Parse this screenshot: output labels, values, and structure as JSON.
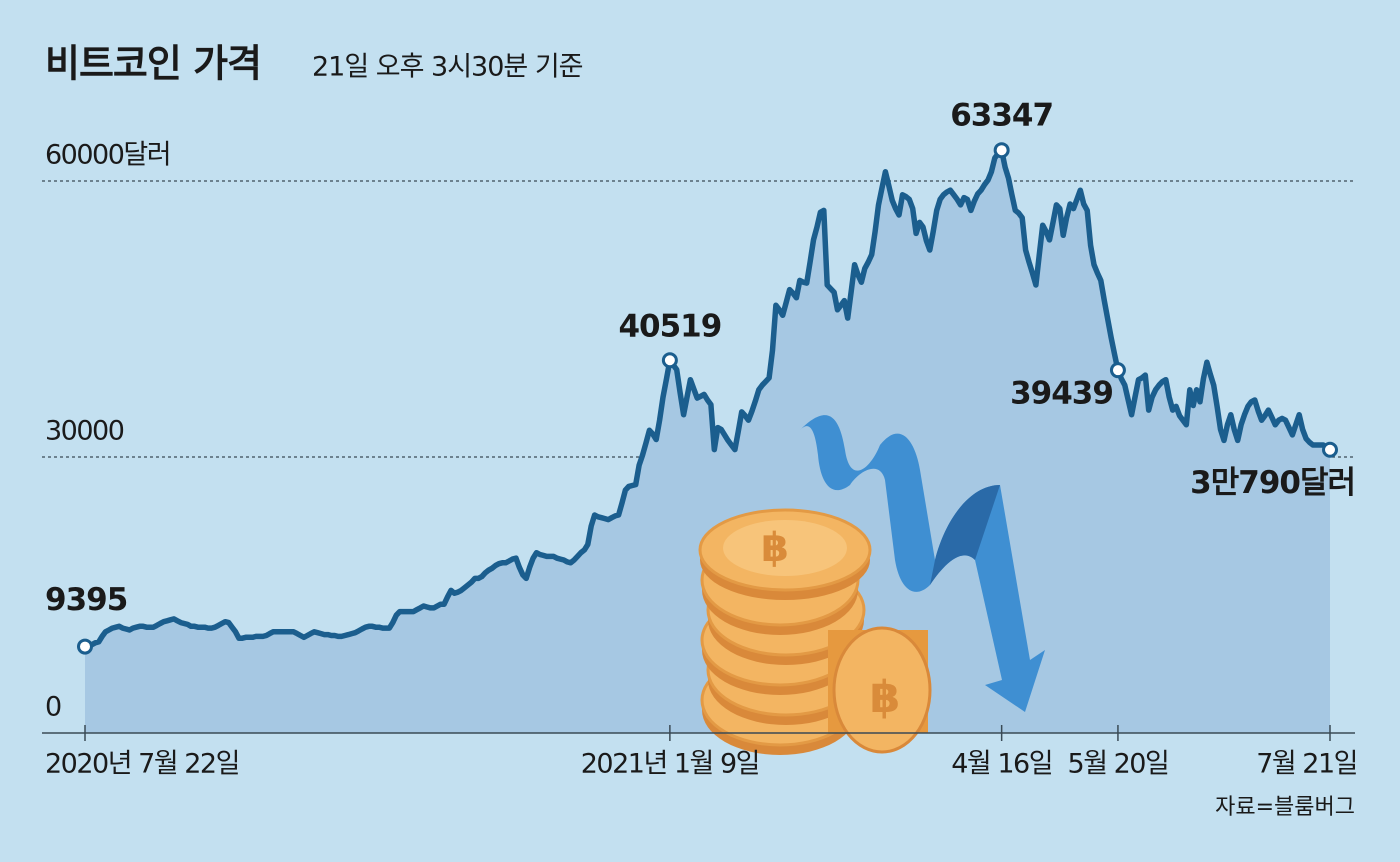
{
  "chart_data": {
    "type": "line",
    "title": "비트코인 가격",
    "subtitle": "21일 오후 3시30분 기준",
    "source": "자료=블룸버그",
    "color": "#1b5e8e",
    "area_color": "#a6c8e3",
    "grid": true,
    "ylim": [
      0,
      65000
    ],
    "yticks": [
      0,
      30000,
      {
        "value": 60000,
        "label": "60000달러"
      }
    ],
    "categories": [
      "2020년 7월 22일",
      null,
      null,
      null,
      null,
      null,
      null,
      null,
      null,
      null,
      null,
      null,
      null,
      null,
      null,
      null,
      null,
      null,
      null,
      null,
      null,
      null,
      null,
      null,
      null,
      null,
      null,
      null,
      null,
      null,
      null,
      null,
      null,
      null,
      null,
      null,
      null,
      null,
      null,
      null,
      null,
      null,
      null,
      null,
      null,
      null,
      null,
      null,
      null,
      null,
      null,
      null,
      null,
      null,
      null,
      null,
      null,
      null,
      null,
      null,
      null,
      null,
      null,
      null,
      null,
      null,
      null,
      null,
      null,
      null,
      null,
      null,
      null,
      null,
      null,
      null,
      null,
      null,
      null,
      null,
      null,
      null,
      null,
      null,
      null,
      null,
      null,
      null,
      null,
      null,
      null,
      null,
      null,
      null,
      null,
      null,
      null,
      null,
      null,
      null,
      null,
      null,
      null,
      null,
      null,
      null,
      null,
      null,
      null,
      null,
      null,
      null,
      null,
      null,
      null,
      null,
      null,
      null,
      null,
      null,
      null,
      null,
      null,
      null,
      null,
      null,
      null,
      null,
      null,
      null,
      null,
      null,
      null,
      null,
      null,
      null,
      null,
      null,
      null,
      null,
      null,
      null,
      null,
      null,
      null,
      null,
      null,
      null,
      null,
      null,
      null,
      null,
      null,
      null,
      null,
      null,
      null,
      null,
      null,
      null,
      null,
      null,
      null,
      null,
      null,
      null,
      null,
      null,
      null,
      null,
      null,
      "2021년 1월 9일",
      null,
      null,
      null,
      null,
      null,
      null,
      null,
      null,
      null,
      null,
      null,
      null,
      null,
      null,
      null,
      null,
      null,
      null,
      null,
      null,
      null,
      null,
      null,
      null,
      null,
      null,
      null,
      null,
      null,
      null,
      null,
      null,
      null,
      null,
      null,
      null,
      null,
      null,
      null,
      null,
      null,
      null,
      null,
      null,
      null,
      null,
      null,
      null,
      null,
      null,
      null,
      null,
      null,
      null,
      null,
      null,
      null,
      null,
      null,
      null,
      null,
      null,
      null,
      null,
      null,
      null,
      null,
      null,
      null,
      null,
      null,
      null,
      null,
      null,
      null,
      null,
      null,
      null,
      null,
      null,
      null,
      null,
      null,
      null,
      null,
      null,
      null,
      null,
      null,
      null,
      null,
      null,
      null,
      null,
      null,
      null,
      "4월 16일",
      null,
      null,
      null,
      null,
      null,
      null,
      null,
      null,
      null,
      null,
      null,
      null,
      null,
      null,
      null,
      null,
      null,
      null,
      null,
      null,
      null,
      null,
      null,
      null,
      null,
      null,
      null,
      null,
      null,
      null,
      null,
      null,
      null,
      "5월 20일",
      null,
      null,
      null,
      null,
      null,
      null,
      null,
      null,
      null,
      null,
      null,
      null,
      null,
      null,
      null,
      null,
      null,
      null,
      null,
      null,
      null,
      null,
      null,
      null,
      null,
      null,
      null,
      null,
      null,
      null,
      null,
      null,
      null,
      null,
      null,
      null,
      null,
      null,
      null,
      null,
      null,
      null,
      null,
      null,
      null,
      null,
      null,
      null,
      null,
      null,
      null,
      null,
      null,
      null,
      null,
      null,
      null,
      null,
      null,
      null,
      null,
      "7월 21일"
    ],
    "values": [
      9395,
      9500,
      9600,
      9800,
      9900,
      10500,
      11000,
      11200,
      11400,
      11500,
      11600,
      11400,
      11300,
      11200,
      11400,
      11500,
      11600,
      11600,
      11500,
      11500,
      11500,
      11700,
      11900,
      12100,
      12200,
      12300,
      12400,
      12200,
      12000,
      11900,
      11800,
      11600,
      11600,
      11500,
      11500,
      11500,
      11400,
      11400,
      11500,
      11700,
      11900,
      12100,
      12000,
      11500,
      11000,
      10300,
      10300,
      10400,
      10400,
      10400,
      10500,
      10500,
      10500,
      10600,
      10800,
      11000,
      11000,
      11000,
      11000,
      11000,
      11000,
      11000,
      10800,
      10600,
      10400,
      10600,
      10800,
      11000,
      10900,
      10800,
      10700,
      10700,
      10600,
      10600,
      10500,
      10500,
      10600,
      10700,
      10800,
      10900,
      11100,
      11300,
      11500,
      11600,
      11600,
      11500,
      11500,
      11400,
      11400,
      11400,
      12000,
      12800,
      13200,
      13200,
      13200,
      13200,
      13200,
      13400,
      13600,
      13800,
      13700,
      13600,
      13600,
      13800,
      14000,
      14000,
      14800,
      15500,
      15200,
      15300,
      15500,
      15800,
      16100,
      16400,
      16800,
      16800,
      17000,
      17400,
      17700,
      17900,
      18200,
      18400,
      18500,
      18500,
      18700,
      18900,
      19000,
      18000,
      17200,
      16800,
      18000,
      19000,
      19600,
      19400,
      19300,
      19200,
      19200,
      19200,
      19000,
      18900,
      18800,
      18600,
      18500,
      18800,
      19200,
      19600,
      19900,
      20500,
      22500,
      23700,
      23500,
      23400,
      23300,
      23200,
      23400,
      23600,
      23700,
      25000,
      26400,
      26800,
      26900,
      27000,
      29100,
      30200,
      31500,
      32900,
      32500,
      31900,
      34000,
      36500,
      38500,
      40519,
      40000,
      39500,
      37000,
      34600,
      36500,
      38400,
      37400,
      36400,
      36600,
      36800,
      36200,
      35700,
      30800,
      33200,
      33000,
      32400,
      31800,
      31300,
      30800,
      32800,
      34900,
      34500,
      34000,
      35000,
      36100,
      37300,
      37800,
      38200,
      38600,
      41600,
      46500,
      46000,
      45400,
      46800,
      48200,
      47800,
      47300,
      49200,
      49000,
      48900,
      51200,
      53600,
      55000,
      56600,
      56800,
      48700,
      48300,
      47900,
      46000,
      46500,
      47000,
      45100,
      48000,
      50900,
      49800,
      49000,
      50500,
      51200,
      52000,
      54500,
      57400,
      59200,
      61000,
      59500,
      57900,
      57000,
      56300,
      58500,
      58300,
      58000,
      57000,
      54300,
      55500,
      55000,
      53500,
      52500,
      54500,
      56800,
      58000,
      58500,
      58800,
      59000,
      58500,
      58000,
      57400,
      58200,
      58000,
      56800,
      57800,
      58600,
      59000,
      59600,
      60100,
      61000,
      62500,
      63000,
      63347,
      61500,
      60300,
      58500,
      56800,
      56500,
      56000,
      52500,
      51200,
      50000,
      48700,
      52000,
      55200,
      54500,
      53600,
      55500,
      57400,
      57000,
      54100,
      56000,
      57500,
      57000,
      58000,
      59000,
      57500,
      56800,
      53000,
      50900,
      50000,
      49200,
      47000,
      45000,
      43000,
      41200,
      39439,
      38500,
      37800,
      36200,
      34600,
      36500,
      38400,
      38600,
      38900,
      35100,
      36500,
      37300,
      37800,
      38200,
      38400,
      36500,
      35100,
      35500,
      34500,
      34000,
      33500,
      37300,
      35600,
      37300,
      36000,
      38500,
      40300,
      39000,
      37800,
      35500,
      33000,
      31800,
      33500,
      34600,
      33000,
      31800,
      33500,
      34600,
      35500,
      36000,
      36200,
      35000,
      34000,
      34500,
      35100,
      34300,
      33500,
      34000,
      34200,
      34000,
      33200,
      32400,
      33500,
      34600,
      33000,
      32000,
      31600,
      31300,
      31300,
      31300,
      31300,
      31000,
      30790
    ],
    "value_labels": [
      "9395",
      null,
      null,
      null,
      null,
      null,
      null,
      null,
      null,
      null,
      null,
      null,
      null,
      null,
      null,
      null,
      null,
      null,
      null,
      null,
      null,
      null,
      null,
      null,
      null,
      null,
      null,
      null,
      null,
      null,
      null,
      null,
      null,
      null,
      null,
      null,
      null,
      null,
      null,
      null,
      null,
      null,
      null,
      null,
      null,
      null,
      null,
      null,
      null,
      null,
      null,
      null,
      null,
      null,
      null,
      null,
      null,
      null,
      null,
      null,
      null,
      null,
      null,
      null,
      null,
      null,
      null,
      null,
      null,
      null,
      null,
      null,
      null,
      null,
      null,
      null,
      null,
      null,
      null,
      null,
      null,
      null,
      null,
      null,
      null,
      null,
      null,
      null,
      null,
      null,
      null,
      null,
      null,
      null,
      null,
      null,
      null,
      null,
      null,
      null,
      null,
      null,
      null,
      null,
      null,
      null,
      null,
      null,
      null,
      null,
      null,
      null,
      null,
      null,
      null,
      null,
      null,
      null,
      null,
      null,
      null,
      null,
      null,
      null,
      null,
      null,
      null,
      null,
      null,
      null,
      null,
      null,
      null,
      null,
      null,
      null,
      null,
      null,
      null,
      null,
      null,
      null,
      null,
      null,
      null,
      null,
      null,
      null,
      null,
      null,
      null,
      null,
      null,
      null,
      null,
      null,
      null,
      null,
      null,
      null,
      null,
      null,
      null,
      null,
      null,
      null,
      null,
      null,
      null,
      null,
      null,
      "40519",
      null,
      null,
      null,
      null,
      null,
      null,
      null,
      null,
      null,
      null,
      null,
      null,
      null,
      null,
      null,
      null,
      null,
      null,
      null,
      null,
      null,
      null,
      null,
      null,
      null,
      null,
      null,
      null,
      null,
      null,
      null,
      null,
      null,
      null,
      null,
      null,
      null,
      null,
      null,
      null,
      null,
      null,
      null,
      null,
      null,
      null,
      null,
      null,
      null,
      null,
      null,
      null,
      null,
      null,
      null,
      null,
      null,
      null,
      null,
      null,
      null,
      null,
      null,
      null,
      null,
      null,
      null,
      null,
      null,
      null,
      null,
      null,
      null,
      null,
      null,
      null,
      null,
      null,
      null,
      null,
      null,
      null,
      null,
      null,
      null,
      null,
      null,
      null,
      null,
      null,
      null,
      null,
      null,
      null,
      null,
      null,
      "63347",
      null,
      null,
      null,
      null,
      null,
      null,
      null,
      null,
      null,
      null,
      null,
      null,
      null,
      null,
      null,
      null,
      null,
      null,
      null,
      null,
      null,
      null,
      null,
      null,
      null,
      null,
      null,
      null,
      null,
      null,
      null,
      null,
      null,
      "39439",
      null,
      null,
      null,
      null,
      null,
      null,
      null,
      null,
      null,
      null,
      null,
      null,
      null,
      null,
      null,
      null,
      null,
      null,
      null,
      null,
      null,
      null,
      null,
      null,
      null,
      null,
      null,
      null,
      null,
      null,
      null,
      null,
      null,
      null,
      null,
      null,
      null,
      null,
      null,
      null,
      null,
      null,
      null,
      null,
      null,
      null,
      null,
      null,
      null,
      null,
      null,
      null,
      null,
      null,
      null,
      null,
      null,
      null,
      null,
      null,
      null,
      "3만790달러"
    ]
  }
}
